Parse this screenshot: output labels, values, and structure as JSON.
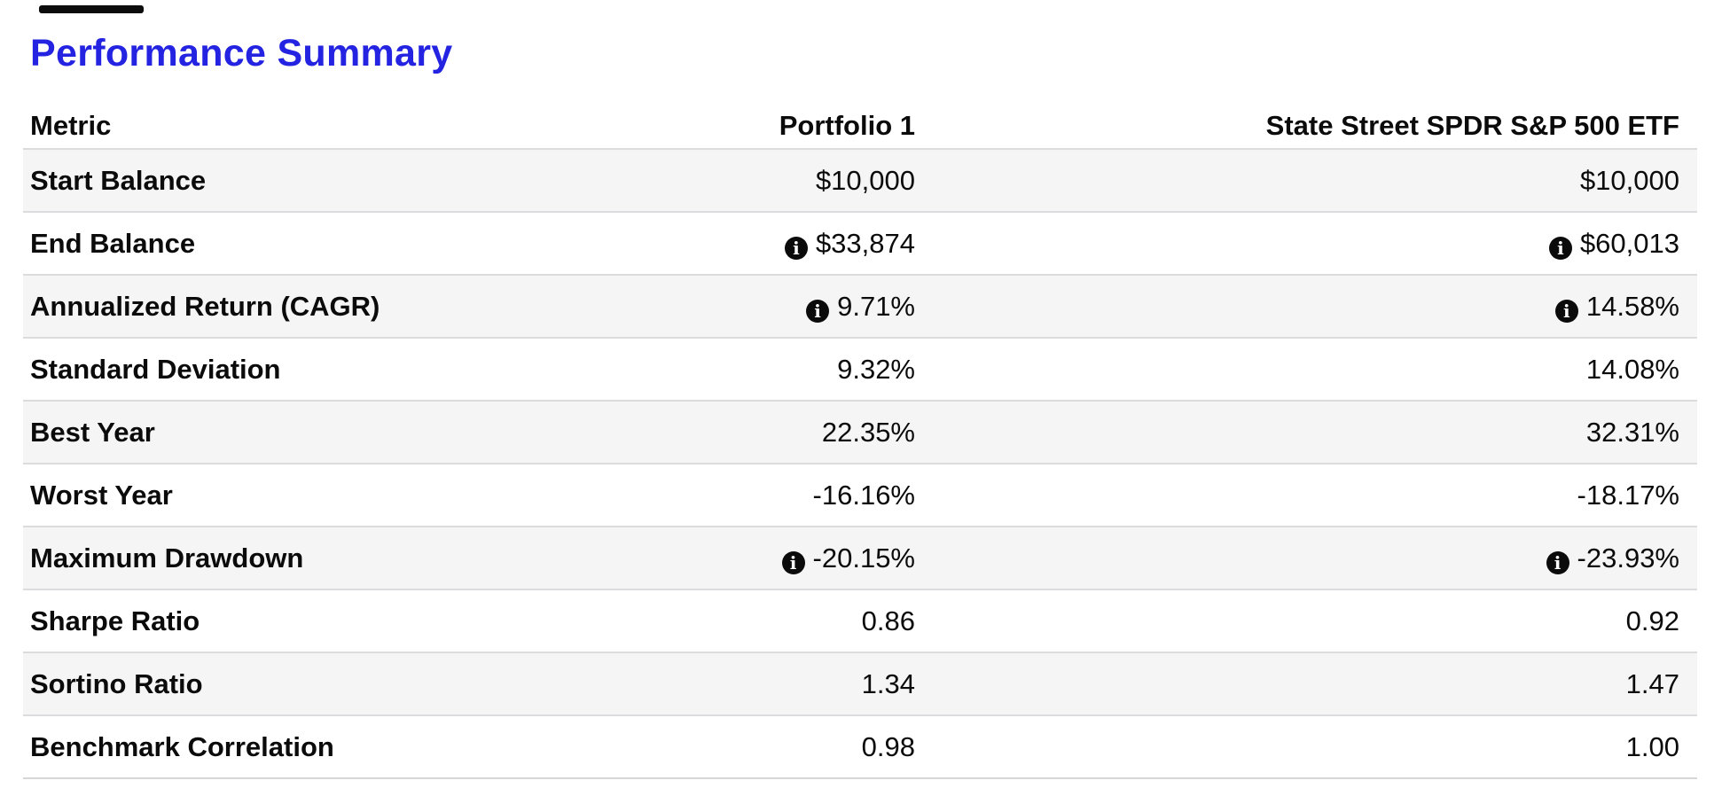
{
  "page": {
    "title": "Performance Summary",
    "accent_color": "#2323e1"
  },
  "table": {
    "info_icon": "i",
    "columns": [
      "Metric",
      "Portfolio 1",
      "State Street SPDR S&P 500 ETF"
    ],
    "rows": [
      {
        "metric": "Start Balance",
        "portfolio1": "$10,000",
        "benchmark": "$10,000",
        "info": false
      },
      {
        "metric": "End Balance",
        "portfolio1": "$33,874",
        "benchmark": "$60,013",
        "info": true
      },
      {
        "metric": "Annualized Return (CAGR)",
        "portfolio1": "9.71%",
        "benchmark": "14.58%",
        "info": true
      },
      {
        "metric": "Standard Deviation",
        "portfolio1": "9.32%",
        "benchmark": "14.08%",
        "info": false
      },
      {
        "metric": "Best Year",
        "portfolio1": "22.35%",
        "benchmark": "32.31%",
        "info": false
      },
      {
        "metric": "Worst Year",
        "portfolio1": "-16.16%",
        "benchmark": "-18.17%",
        "info": false
      },
      {
        "metric": "Maximum Drawdown",
        "portfolio1": "-20.15%",
        "benchmark": "-23.93%",
        "info": true
      },
      {
        "metric": "Sharpe Ratio",
        "portfolio1": "0.86",
        "benchmark": "0.92",
        "info": false
      },
      {
        "metric": "Sortino Ratio",
        "portfolio1": "1.34",
        "benchmark": "1.47",
        "info": false
      },
      {
        "metric": "Benchmark Correlation",
        "portfolio1": "0.98",
        "benchmark": "1.00",
        "info": false
      }
    ]
  }
}
